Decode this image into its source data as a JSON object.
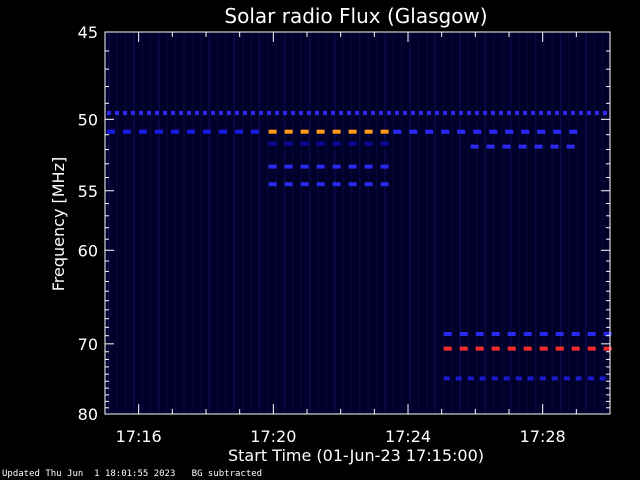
{
  "chart_data": {
    "type": "heatmap",
    "title": "Solar radio Flux (Glasgow)",
    "xlabel": "Start Time (01-Jun-23 17:15:00)",
    "ylabel": "Frequency [MHz]",
    "x_unit": "minutes after 17:15:00",
    "xlim": [
      0,
      15
    ],
    "ylim": [
      45,
      80
    ],
    "y_scale": "reciprocal",
    "x_ticks": [
      {
        "value": 1,
        "label": "17:16"
      },
      {
        "value": 5,
        "label": "17:20"
      },
      {
        "value": 9,
        "label": "17:24"
      },
      {
        "value": 13,
        "label": "17:28"
      }
    ],
    "y_ticks": [
      {
        "value": 45,
        "label": "45"
      },
      {
        "value": 50,
        "label": "50"
      },
      {
        "value": 55,
        "label": "55"
      },
      {
        "value": 60,
        "label": "60"
      },
      {
        "value": 70,
        "label": "70"
      },
      {
        "value": 80,
        "label": "80"
      }
    ],
    "background_color": "#00002a",
    "bands": [
      {
        "freq": 49.6,
        "t_start": 0.0,
        "t_end": 15.0,
        "color": "#2a2aff",
        "dash": 4
      },
      {
        "freq": 50.8,
        "t_start": 0.0,
        "t_end": 4.8,
        "color": "#1a1ae6",
        "dash": 8
      },
      {
        "freq": 50.8,
        "t_start": 4.8,
        "t_end": 8.5,
        "color": "#ff9a1a",
        "dash": 8
      },
      {
        "freq": 50.8,
        "t_start": 8.5,
        "t_end": 14.0,
        "color": "#2a2aff",
        "dash": 8
      },
      {
        "freq": 51.6,
        "t_start": 4.8,
        "t_end": 8.5,
        "color": "#0a0a9a",
        "dash": 8
      },
      {
        "freq": 53.2,
        "t_start": 4.8,
        "t_end": 8.5,
        "color": "#2a2aee",
        "dash": 8
      },
      {
        "freq": 54.5,
        "t_start": 4.8,
        "t_end": 8.5,
        "color": "#2a2aee",
        "dash": 8
      },
      {
        "freq": 51.8,
        "t_start": 10.8,
        "t_end": 14.0,
        "color": "#2a2aee",
        "dash": 8
      },
      {
        "freq": 68.8,
        "t_start": 10.0,
        "t_end": 15.0,
        "color": "#2a2aee",
        "dash": 8
      },
      {
        "freq": 70.6,
        "t_start": 10.0,
        "t_end": 15.0,
        "color": "#ff2a2a",
        "dash": 8
      },
      {
        "freq": 74.6,
        "t_start": 10.0,
        "t_end": 15.0,
        "color": "#1a1acc",
        "dash": 6
      }
    ]
  },
  "footer": {
    "updated": "Updated Thu Jun  1 18:01:55 2023",
    "note": "BG subtracted"
  }
}
